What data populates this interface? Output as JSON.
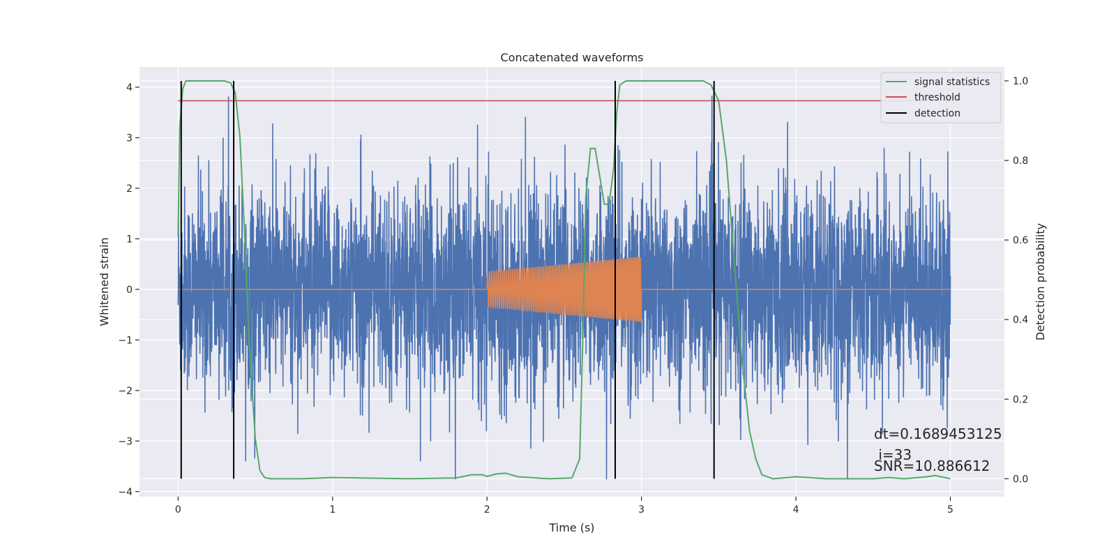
{
  "chart_data": {
    "type": "line",
    "title": "Concatenated waveforms",
    "xlabel": "Time (s)",
    "ylabel": "Whitened strain",
    "y2label": "Detection probability",
    "xlim": [
      -0.25,
      5.35
    ],
    "ylim": [
      -4.1,
      4.4
    ],
    "y2lim": [
      -0.045,
      1.035
    ],
    "xticks": [
      0,
      1,
      2,
      3,
      4,
      5
    ],
    "yticks": [
      4,
      3,
      2,
      1,
      0,
      -1,
      -2,
      -3,
      -4
    ],
    "y2ticks": [
      1.0,
      0.8,
      0.6,
      0.4,
      0.2,
      0.0
    ],
    "xtick_labels": [
      "0",
      "1",
      "2",
      "3",
      "4",
      "5"
    ],
    "ytick_labels": [
      "4",
      "3",
      "2",
      "1",
      "0",
      "−1",
      "−2",
      "−3",
      "−4"
    ],
    "y2tick_labels": [
      "1.0",
      "0.8",
      "0.6",
      "0.4",
      "0.2",
      "0.0"
    ],
    "grid": true,
    "legend_position": "top-right",
    "colors": {
      "background": "#eaeaf2",
      "grid": "#ffffff",
      "strain": "#4c72b0",
      "injection": "#dd8452",
      "signal_statistics": "#55a868",
      "threshold": "#c44e52",
      "detection": "#000000"
    },
    "series": [
      {
        "name": "",
        "kind": "strain",
        "axis": "left",
        "description_values": {
          "x_start": 0,
          "x_end": 5,
          "typical_std": 1.0,
          "min": -3.75,
          "max": 4.0
        }
      },
      {
        "name": "",
        "kind": "injection",
        "axis": "left",
        "chirp": {
          "x_start": 2.0,
          "x_end": 3.0,
          "amp_start": 0.35,
          "amp_end": 0.65,
          "flat_x": [
            0,
            5
          ]
        }
      },
      {
        "name": "signal statistics",
        "axis": "right",
        "x": [
          0,
          0.01,
          0.03,
          0.05,
          0.07,
          0.1,
          0.2,
          0.3,
          0.34,
          0.37,
          0.4,
          0.43,
          0.46,
          0.5,
          0.53,
          0.56,
          0.6,
          0.8,
          1.0,
          1.5,
          1.8,
          1.9,
          1.97,
          2.0,
          2.06,
          2.12,
          2.2,
          2.4,
          2.55,
          2.6,
          2.62,
          2.64,
          2.67,
          2.7,
          2.73,
          2.76,
          2.79,
          2.82,
          2.84,
          2.86,
          2.9,
          3.0,
          3.4,
          3.45,
          3.5,
          3.55,
          3.6,
          3.65,
          3.7,
          3.74,
          3.78,
          3.85,
          3.95,
          4.0,
          4.2,
          4.5,
          4.6,
          4.7,
          4.85,
          4.9,
          5.0
        ],
        "values": [
          0.61,
          0.88,
          0.98,
          1.0,
          1.0,
          1.0,
          1.0,
          1.0,
          0.995,
          0.97,
          0.86,
          0.62,
          0.34,
          0.1,
          0.02,
          0.003,
          0.0,
          0.0,
          0.003,
          0.0,
          0.002,
          0.01,
          0.01,
          0.006,
          0.012,
          0.014,
          0.005,
          0.0,
          0.002,
          0.05,
          0.35,
          0.71,
          0.83,
          0.83,
          0.76,
          0.69,
          0.69,
          0.78,
          0.92,
          0.99,
          1.0,
          1.0,
          1.0,
          0.99,
          0.95,
          0.8,
          0.55,
          0.3,
          0.12,
          0.05,
          0.01,
          0.0,
          0.003,
          0.005,
          0.0,
          0.0,
          0.003,
          0.0,
          0.005,
          0.008,
          0.0
        ]
      },
      {
        "name": "threshold",
        "axis": "right",
        "x": [
          0,
          5.05
        ],
        "values": [
          0.95,
          0.95
        ]
      },
      {
        "name": "detection",
        "axis": "right",
        "vlines_x": [
          0.02,
          0.36,
          2.83,
          3.47
        ],
        "ymin": 0.0,
        "ymax": 1.0
      }
    ],
    "annotations": [
      "dt=0.1689453125",
      " i=33",
      "SNR=10.886612"
    ]
  }
}
